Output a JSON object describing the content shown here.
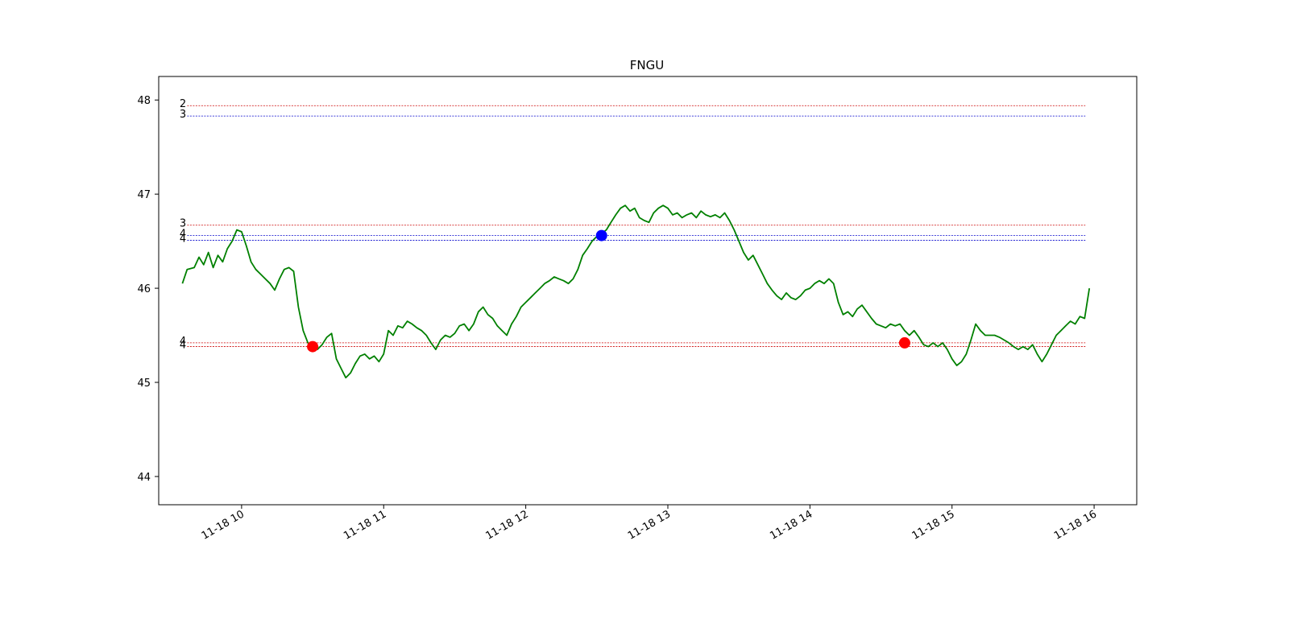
{
  "chart_data": {
    "type": "line",
    "title": "FNGU",
    "xlabel": "",
    "ylabel": "",
    "date": "11-18",
    "x_start": "09:35",
    "x_end": "15:58",
    "xlim": [
      "09:25",
      "16:18"
    ],
    "ylim": [
      43.7,
      48.25
    ],
    "x_ticks": [
      {
        "time": "10:00",
        "label": "11-18 10"
      },
      {
        "time": "11:00",
        "label": "11-18 11"
      },
      {
        "time": "12:00",
        "label": "11-18 12"
      },
      {
        "time": "13:00",
        "label": "11-18 13"
      },
      {
        "time": "14:00",
        "label": "11-18 14"
      },
      {
        "time": "15:00",
        "label": "11-18 15"
      },
      {
        "time": "16:00",
        "label": "11-18 16"
      }
    ],
    "y_ticks": [
      {
        "value": 44,
        "label": "44"
      },
      {
        "value": 45,
        "label": "45"
      },
      {
        "value": 46,
        "label": "46"
      },
      {
        "value": 47,
        "label": "47"
      },
      {
        "value": 48,
        "label": "48"
      }
    ],
    "series": [
      {
        "color": "#008000",
        "points": [
          [
            "09:35",
            46.05
          ],
          [
            "09:37",
            46.2
          ],
          [
            "09:40",
            46.22
          ],
          [
            "09:42",
            46.33
          ],
          [
            "09:44",
            46.25
          ],
          [
            "09:46",
            46.38
          ],
          [
            "09:48",
            46.22
          ],
          [
            "09:50",
            46.35
          ],
          [
            "09:52",
            46.28
          ],
          [
            "09:54",
            46.42
          ],
          [
            "09:56",
            46.5
          ],
          [
            "09:58",
            46.62
          ],
          [
            "10:00",
            46.6
          ],
          [
            "10:02",
            46.45
          ],
          [
            "10:04",
            46.28
          ],
          [
            "10:06",
            46.2
          ],
          [
            "10:08",
            46.15
          ],
          [
            "10:10",
            46.1
          ],
          [
            "10:12",
            46.05
          ],
          [
            "10:14",
            45.98
          ],
          [
            "10:16",
            46.1
          ],
          [
            "10:18",
            46.2
          ],
          [
            "10:20",
            46.22
          ],
          [
            "10:22",
            46.18
          ],
          [
            "10:24",
            45.8
          ],
          [
            "10:26",
            45.55
          ],
          [
            "10:28",
            45.42
          ],
          [
            "10:30",
            45.38
          ],
          [
            "10:32",
            45.35
          ],
          [
            "10:34",
            45.4
          ],
          [
            "10:36",
            45.48
          ],
          [
            "10:38",
            45.52
          ],
          [
            "10:40",
            45.25
          ],
          [
            "10:42",
            45.15
          ],
          [
            "10:44",
            45.05
          ],
          [
            "10:46",
            45.1
          ],
          [
            "10:48",
            45.2
          ],
          [
            "10:50",
            45.28
          ],
          [
            "10:52",
            45.3
          ],
          [
            "10:54",
            45.25
          ],
          [
            "10:56",
            45.28
          ],
          [
            "10:58",
            45.22
          ],
          [
            "11:00",
            45.3
          ],
          [
            "11:02",
            45.55
          ],
          [
            "11:04",
            45.5
          ],
          [
            "11:06",
            45.6
          ],
          [
            "11:08",
            45.58
          ],
          [
            "11:10",
            45.65
          ],
          [
            "11:12",
            45.62
          ],
          [
            "11:14",
            45.58
          ],
          [
            "11:16",
            45.55
          ],
          [
            "11:18",
            45.5
          ],
          [
            "11:20",
            45.42
          ],
          [
            "11:22",
            45.35
          ],
          [
            "11:24",
            45.45
          ],
          [
            "11:26",
            45.5
          ],
          [
            "11:28",
            45.48
          ],
          [
            "11:30",
            45.52
          ],
          [
            "11:32",
            45.6
          ],
          [
            "11:34",
            45.62
          ],
          [
            "11:36",
            45.55
          ],
          [
            "11:38",
            45.62
          ],
          [
            "11:40",
            45.75
          ],
          [
            "11:42",
            45.8
          ],
          [
            "11:44",
            45.72
          ],
          [
            "11:46",
            45.68
          ],
          [
            "11:48",
            45.6
          ],
          [
            "11:50",
            45.55
          ],
          [
            "11:52",
            45.5
          ],
          [
            "11:54",
            45.62
          ],
          [
            "11:56",
            45.7
          ],
          [
            "11:58",
            45.8
          ],
          [
            "12:00",
            45.85
          ],
          [
            "12:02",
            45.9
          ],
          [
            "12:04",
            45.95
          ],
          [
            "12:06",
            46.0
          ],
          [
            "12:08",
            46.05
          ],
          [
            "12:10",
            46.08
          ],
          [
            "12:12",
            46.12
          ],
          [
            "12:14",
            46.1
          ],
          [
            "12:16",
            46.08
          ],
          [
            "12:18",
            46.05
          ],
          [
            "12:20",
            46.1
          ],
          [
            "12:22",
            46.2
          ],
          [
            "12:24",
            46.35
          ],
          [
            "12:26",
            46.42
          ],
          [
            "12:28",
            46.5
          ],
          [
            "12:30",
            46.55
          ],
          [
            "12:32",
            46.58
          ],
          [
            "12:34",
            46.62
          ],
          [
            "12:36",
            46.7
          ],
          [
            "12:38",
            46.78
          ],
          [
            "12:40",
            46.85
          ],
          [
            "12:42",
            46.88
          ],
          [
            "12:44",
            46.82
          ],
          [
            "12:46",
            46.85
          ],
          [
            "12:48",
            46.75
          ],
          [
            "12:50",
            46.72
          ],
          [
            "12:52",
            46.7
          ],
          [
            "12:54",
            46.8
          ],
          [
            "12:56",
            46.85
          ],
          [
            "12:58",
            46.88
          ],
          [
            "13:00",
            46.85
          ],
          [
            "13:02",
            46.78
          ],
          [
            "13:04",
            46.8
          ],
          [
            "13:06",
            46.75
          ],
          [
            "13:08",
            46.78
          ],
          [
            "13:10",
            46.8
          ],
          [
            "13:12",
            46.75
          ],
          [
            "13:14",
            46.82
          ],
          [
            "13:16",
            46.78
          ],
          [
            "13:18",
            46.76
          ],
          [
            "13:20",
            46.78
          ],
          [
            "13:22",
            46.75
          ],
          [
            "13:24",
            46.8
          ],
          [
            "13:26",
            46.72
          ],
          [
            "13:28",
            46.62
          ],
          [
            "13:30",
            46.5
          ],
          [
            "13:32",
            46.38
          ],
          [
            "13:34",
            46.3
          ],
          [
            "13:36",
            46.35
          ],
          [
            "13:38",
            46.25
          ],
          [
            "13:40",
            46.15
          ],
          [
            "13:42",
            46.05
          ],
          [
            "13:44",
            45.98
          ],
          [
            "13:46",
            45.92
          ],
          [
            "13:48",
            45.88
          ],
          [
            "13:50",
            45.95
          ],
          [
            "13:52",
            45.9
          ],
          [
            "13:54",
            45.88
          ],
          [
            "13:56",
            45.92
          ],
          [
            "13:58",
            45.98
          ],
          [
            "14:00",
            46.0
          ],
          [
            "14:02",
            46.05
          ],
          [
            "14:04",
            46.08
          ],
          [
            "14:06",
            46.05
          ],
          [
            "14:08",
            46.1
          ],
          [
            "14:10",
            46.05
          ],
          [
            "14:12",
            45.85
          ],
          [
            "14:14",
            45.72
          ],
          [
            "14:16",
            45.75
          ],
          [
            "14:18",
            45.7
          ],
          [
            "14:20",
            45.78
          ],
          [
            "14:22",
            45.82
          ],
          [
            "14:24",
            45.75
          ],
          [
            "14:26",
            45.68
          ],
          [
            "14:28",
            45.62
          ],
          [
            "14:30",
            45.6
          ],
          [
            "14:32",
            45.58
          ],
          [
            "14:34",
            45.62
          ],
          [
            "14:36",
            45.6
          ],
          [
            "14:38",
            45.62
          ],
          [
            "14:40",
            45.55
          ],
          [
            "14:42",
            45.5
          ],
          [
            "14:44",
            45.55
          ],
          [
            "14:46",
            45.48
          ],
          [
            "14:48",
            45.4
          ],
          [
            "14:50",
            45.38
          ],
          [
            "14:52",
            45.42
          ],
          [
            "14:54",
            45.38
          ],
          [
            "14:56",
            45.42
          ],
          [
            "14:58",
            45.35
          ],
          [
            "15:00",
            45.25
          ],
          [
            "15:02",
            45.18
          ],
          [
            "15:04",
            45.22
          ],
          [
            "15:06",
            45.3
          ],
          [
            "15:08",
            45.45
          ],
          [
            "15:10",
            45.62
          ],
          [
            "15:12",
            45.55
          ],
          [
            "15:14",
            45.5
          ],
          [
            "15:16",
            45.5
          ],
          [
            "15:18",
            45.5
          ],
          [
            "15:20",
            45.48
          ],
          [
            "15:22",
            45.45
          ],
          [
            "15:24",
            45.42
          ],
          [
            "15:26",
            45.38
          ],
          [
            "15:28",
            45.35
          ],
          [
            "15:30",
            45.38
          ],
          [
            "15:32",
            45.35
          ],
          [
            "15:34",
            45.4
          ],
          [
            "15:36",
            45.3
          ],
          [
            "15:38",
            45.22
          ],
          [
            "15:40",
            45.3
          ],
          [
            "15:42",
            45.4
          ],
          [
            "15:44",
            45.5
          ],
          [
            "15:46",
            45.55
          ],
          [
            "15:48",
            45.6
          ],
          [
            "15:50",
            45.65
          ],
          [
            "15:52",
            45.62
          ],
          [
            "15:54",
            45.7
          ],
          [
            "15:56",
            45.68
          ],
          [
            "15:58",
            46.0
          ]
        ]
      }
    ],
    "price_data_note": ""
  }
}
